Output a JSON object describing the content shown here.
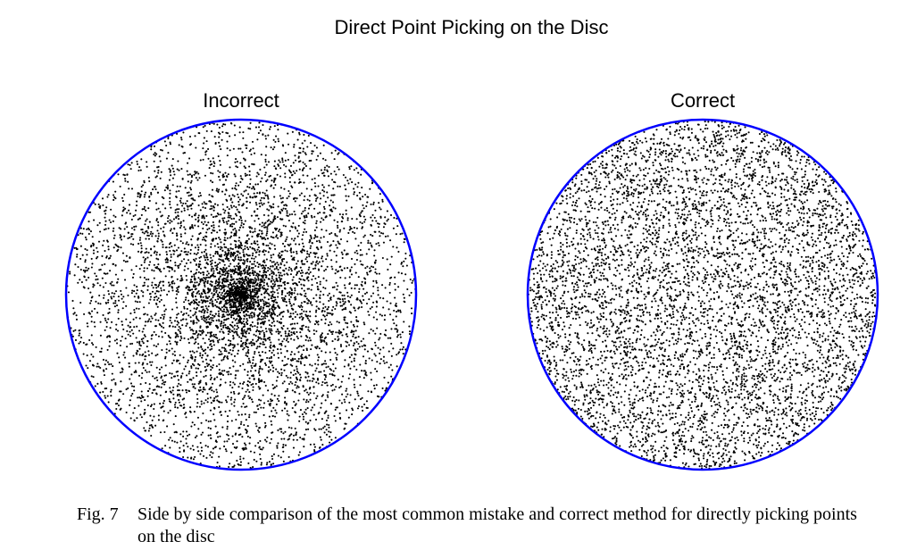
{
  "page": {
    "title": "Direct Point Picking on the Disc"
  },
  "chart_data": [
    {
      "type": "scatter",
      "title": "Incorrect",
      "xlim": [
        -1,
        1
      ],
      "ylim": [
        -1,
        1
      ],
      "grid": false,
      "point_color": "#000000",
      "boundary_color": "#0000ff",
      "point_count": 6000,
      "sampling": "r = U, theta = 2*pi*U (points cluster at centre)",
      "boundary": "unit circle"
    },
    {
      "type": "scatter",
      "title": "Correct",
      "xlim": [
        -1,
        1
      ],
      "ylim": [
        -1,
        1
      ],
      "grid": false,
      "point_color": "#000000",
      "boundary_color": "#0000ff",
      "point_count": 6000,
      "sampling": "r = sqrt(U), theta = 2*pi*U (uniform over area)",
      "boundary": "unit circle"
    }
  ],
  "caption": {
    "label": "Fig. 7",
    "text": "Side by side comparison of the most common mistake and correct method for directly picking points on the disc"
  }
}
